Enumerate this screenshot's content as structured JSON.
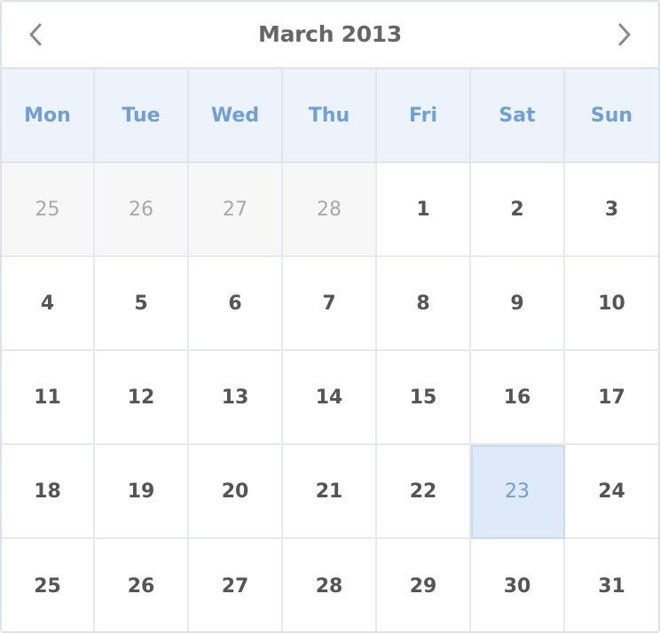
{
  "header": {
    "title": "March 2013",
    "prev_icon": "chevron-left-icon",
    "next_icon": "chevron-right-icon"
  },
  "weekdays": [
    "Mon",
    "Tue",
    "Wed",
    "Thu",
    "Fri",
    "Sat",
    "Sun"
  ],
  "days": [
    {
      "label": "25",
      "other_month": true
    },
    {
      "label": "26",
      "other_month": true
    },
    {
      "label": "27",
      "other_month": true
    },
    {
      "label": "28",
      "other_month": true
    },
    {
      "label": "1"
    },
    {
      "label": "2"
    },
    {
      "label": "3"
    },
    {
      "label": "4"
    },
    {
      "label": "5"
    },
    {
      "label": "6"
    },
    {
      "label": "7"
    },
    {
      "label": "8"
    },
    {
      "label": "9"
    },
    {
      "label": "10"
    },
    {
      "label": "11"
    },
    {
      "label": "12"
    },
    {
      "label": "13"
    },
    {
      "label": "14"
    },
    {
      "label": "15"
    },
    {
      "label": "16"
    },
    {
      "label": "17"
    },
    {
      "label": "18"
    },
    {
      "label": "19"
    },
    {
      "label": "20"
    },
    {
      "label": "21"
    },
    {
      "label": "22"
    },
    {
      "label": "23",
      "selected": true
    },
    {
      "label": "24"
    },
    {
      "label": "25"
    },
    {
      "label": "26"
    },
    {
      "label": "27"
    },
    {
      "label": "28"
    },
    {
      "label": "29"
    },
    {
      "label": "30"
    },
    {
      "label": "31"
    }
  ],
  "colors": {
    "accent": "#6f9fd8",
    "header_bg": "#edf3fb",
    "selected_bg": "#deeaf7",
    "other_month_bg": "#f7f7f7",
    "text": "#555555",
    "muted_text": "#a9a9a9"
  }
}
